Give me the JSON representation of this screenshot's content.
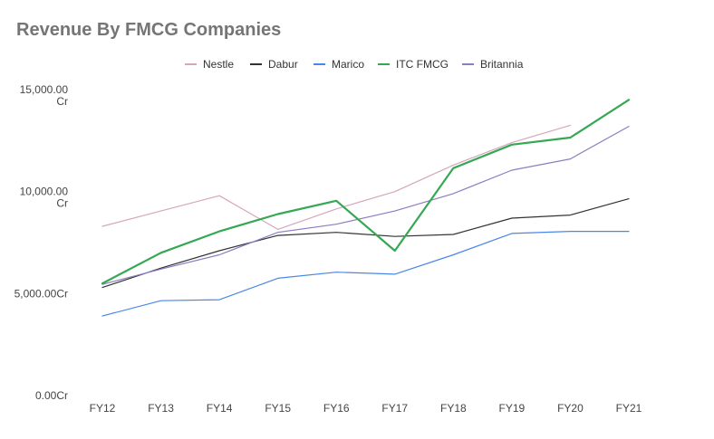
{
  "chart_data": {
    "type": "line",
    "title": "Revenue By FMCG Companies",
    "xlabel": "",
    "ylabel": "",
    "categories": [
      "FY12",
      "FY13",
      "FY14",
      "FY15",
      "FY16",
      "FY17",
      "FY18",
      "FY19",
      "FY20",
      "FY21"
    ],
    "ylim": [
      0,
      15000
    ],
    "yticks": [
      {
        "value": 0,
        "label": [
          "0.00Cr"
        ]
      },
      {
        "value": 5000,
        "label": [
          "5,000.00Cr"
        ]
      },
      {
        "value": 10000,
        "label": [
          "10,000.00",
          "Cr"
        ]
      },
      {
        "value": 15000,
        "label": [
          "15,000.00",
          "Cr"
        ]
      }
    ],
    "grid": false,
    "legend": "top-center",
    "series": [
      {
        "name": "Nestle",
        "color": "#d5a6bd",
        "width": 1.2,
        "values": [
          8300,
          9050,
          9800,
          8150,
          9150,
          10000,
          11300,
          12400,
          13250,
          null
        ]
      },
      {
        "name": "Dabur",
        "color": "#333333",
        "width": 1.2,
        "values": [
          5300,
          6250,
          7100,
          7850,
          8000,
          7800,
          7900,
          8700,
          8850,
          9650
        ]
      },
      {
        "name": "Marico",
        "color": "#4a86e8",
        "width": 1.2,
        "values": [
          3900,
          4650,
          4700,
          5750,
          6050,
          5950,
          6900,
          7950,
          8050,
          8050
        ]
      },
      {
        "name": "ITC FMCG",
        "color": "#34a853",
        "width": 2.2,
        "values": [
          5500,
          7000,
          8050,
          8900,
          9550,
          7100,
          11150,
          12300,
          12650,
          14500
        ]
      },
      {
        "name": "Britannia",
        "color": "#8e7cc3",
        "width": 1.2,
        "values": [
          5450,
          6200,
          6900,
          8000,
          8400,
          9050,
          9900,
          11050,
          11600,
          13200
        ]
      }
    ]
  }
}
